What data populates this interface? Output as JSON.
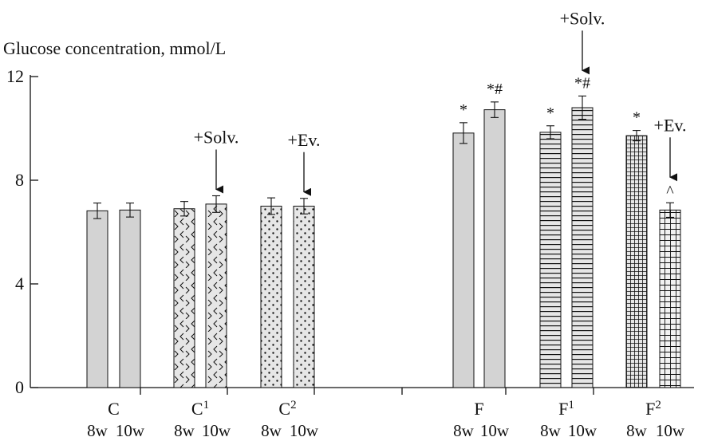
{
  "chart_data": {
    "type": "bar",
    "ylabel": "Glucose concentration, mmol/L",
    "ylim": [
      0,
      12
    ],
    "yticks": [
      0,
      4,
      8,
      12
    ],
    "groups": [
      {
        "label": "C",
        "sup": "",
        "bars": [
          {
            "label": "8w",
            "value": 6.82,
            "err": 0.3,
            "pattern": "solid"
          },
          {
            "label": "10w",
            "value": 6.85,
            "err": 0.27,
            "pattern": "solid"
          }
        ]
      },
      {
        "label": "C",
        "sup": "1",
        "bars": [
          {
            "label": "8w",
            "value": 6.9,
            "err": 0.28,
            "pattern": "chevron"
          },
          {
            "label": "10w",
            "value": 7.08,
            "err": 0.32,
            "pattern": "chevron"
          }
        ]
      },
      {
        "label": "C",
        "sup": "2",
        "bars": [
          {
            "label": "8w",
            "value": 7.0,
            "err": 0.32,
            "pattern": "dots"
          },
          {
            "label": "10w",
            "value": 7.0,
            "err": 0.3,
            "pattern": "dots"
          }
        ]
      },
      {
        "label": "F",
        "sup": "",
        "bars": [
          {
            "label": "8w",
            "value": 9.82,
            "err": 0.4,
            "pattern": "solid",
            "mark": "*"
          },
          {
            "label": "10w",
            "value": 10.72,
            "err": 0.3,
            "pattern": "solid",
            "mark": "*#"
          }
        ]
      },
      {
        "label": "F",
        "sup": "1",
        "bars": [
          {
            "label": "8w",
            "value": 9.85,
            "err": 0.25,
            "pattern": "hlines",
            "mark": "*"
          },
          {
            "label": "10w",
            "value": 10.8,
            "err": 0.45,
            "pattern": "hlines",
            "mark": "*#"
          }
        ]
      },
      {
        "label": "F",
        "sup": "2",
        "bars": [
          {
            "label": "8w",
            "value": 9.72,
            "err": 0.2,
            "pattern": "grid-fine",
            "mark": "*"
          },
          {
            "label": "10w",
            "value": 6.85,
            "err": 0.28,
            "pattern": "grid-coarse",
            "mark": "^"
          }
        ]
      }
    ],
    "annotations": [
      {
        "text": "+Solv.",
        "group": 1,
        "bar": 1
      },
      {
        "text": "+Ev.",
        "group": 2,
        "bar": 1
      },
      {
        "text": "+Solv.",
        "group": 4,
        "bar": 1
      },
      {
        "text": "+Ev.",
        "group": 5,
        "bar": 1
      }
    ],
    "colors": {
      "bar_fill": "#d3d3d3",
      "pattern_bg": "#e6e6e6",
      "stroke": "#111111"
    }
  }
}
